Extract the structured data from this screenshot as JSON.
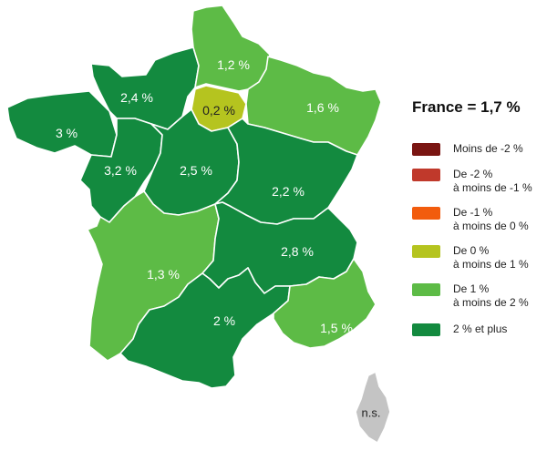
{
  "legend": {
    "title": "France = 1,7 %",
    "items": [
      {
        "label": "Moins de -2 %",
        "color": "#7a1512"
      },
      {
        "label": "De -2 %\nà moins de -1 %",
        "color": "#c0392b"
      },
      {
        "label": "De -1 %\nà moins de 0 %",
        "color": "#f25c0d"
      },
      {
        "label": "De 0 %\nà moins de 1 %",
        "color": "#b5c41f"
      },
      {
        "label": "De 1 %\nà moins de 2 %",
        "color": "#5dbb46"
      },
      {
        "label": "2 % et plus",
        "color": "#138a3f"
      }
    ]
  },
  "regions": [
    {
      "name": "Hauts-de-France",
      "value": "1,2 %",
      "class": "De 1 % à moins de 2 %"
    },
    {
      "name": "Normandie",
      "value": "2,4 %",
      "class": "2 % et plus"
    },
    {
      "name": "Île-de-France",
      "value": "0,2 %",
      "class": "De 0 % à moins de 1 %"
    },
    {
      "name": "Grand Est",
      "value": "1,6 %",
      "class": "De 1 % à moins de 2 %"
    },
    {
      "name": "Bretagne",
      "value": "3 %",
      "class": "2 % et plus"
    },
    {
      "name": "Pays de la Loire",
      "value": "3,2 %",
      "class": "2 % et plus"
    },
    {
      "name": "Centre-Val de Loire",
      "value": "2,5 %",
      "class": "2 % et plus"
    },
    {
      "name": "Bourgogne-Franche-Comté",
      "value": "2,2 %",
      "class": "2 % et plus"
    },
    {
      "name": "Nouvelle-Aquitaine",
      "value": "1,3 %",
      "class": "De 1 % à moins de 2 %"
    },
    {
      "name": "Auvergne-Rhône-Alpes",
      "value": "2,8 %",
      "class": "2 % et plus"
    },
    {
      "name": "Occitanie",
      "value": "2 %",
      "class": "2 % et plus"
    },
    {
      "name": "Provence-Alpes-Côte d'Azur",
      "value": "1,5 %",
      "class": "De 1 % à moins de 2 %"
    },
    {
      "name": "Corse",
      "value": "n.s.",
      "class": "n.s."
    }
  ],
  "colors": {
    "dark_green": "#138a3f",
    "light_green": "#5dbb46",
    "yellow_green": "#b5c41f",
    "grey": "#c4c4c4"
  }
}
